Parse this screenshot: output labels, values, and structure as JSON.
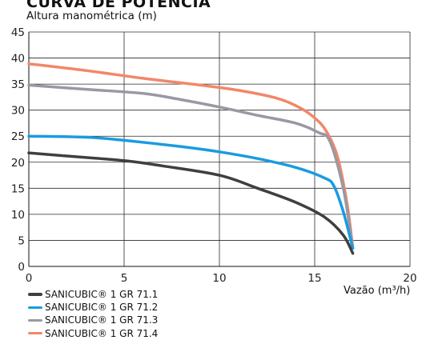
{
  "chart_data": {
    "type": "line",
    "title": "CURVA DE POTÊNCIA",
    "ylabel": "Altura manométrica (m)",
    "xlabel": "Vazão (m³/h)",
    "xlim": [
      0,
      20
    ],
    "ylim": [
      0,
      45
    ],
    "xticks": [
      0,
      5,
      10,
      15,
      20
    ],
    "yticks": [
      0,
      5,
      10,
      15,
      20,
      25,
      30,
      35,
      40,
      45
    ],
    "grid": true,
    "legend_position": "bottom-left",
    "series": [
      {
        "name": "SANICUBIC® 1 GR 71.1",
        "color": "#3f3f3f",
        "x": [
          0,
          2,
          5,
          7,
          10,
          12,
          14,
          15.5,
          16.5,
          17.0
        ],
        "y": [
          21.8,
          21.2,
          20.3,
          19.3,
          17.5,
          15.0,
          12.3,
          9.5,
          6.0,
          2.5
        ]
      },
      {
        "name": "SANICUBIC® 1 GR 71.2",
        "color": "#1a9be0",
        "x": [
          0,
          3,
          5,
          8,
          10,
          12,
          14,
          15.5,
          16.0,
          16.5,
          17.0
        ],
        "y": [
          25.0,
          24.8,
          24.2,
          23.0,
          22.0,
          20.7,
          19.0,
          17.0,
          15.5,
          10.5,
          3.5
        ]
      },
      {
        "name": "SANICUBIC® 1 GR 71.3",
        "color": "#9a98a3",
        "x": [
          0,
          3,
          6,
          8,
          10,
          12,
          14,
          15.2,
          15.8,
          16.5,
          17.0
        ],
        "y": [
          34.8,
          34.0,
          33.2,
          32.0,
          30.6,
          29.0,
          27.5,
          25.7,
          24.0,
          15.0,
          3.5
        ]
      },
      {
        "name": "SANICUBIC® 1 GR 71.4",
        "color": "#f2876a",
        "x": [
          0,
          3,
          6,
          9,
          11,
          13,
          14.2,
          15.0,
          15.6,
          16.2,
          16.7,
          17.0
        ],
        "y": [
          38.9,
          37.6,
          36.1,
          34.8,
          33.8,
          32.3,
          30.5,
          28.5,
          26.0,
          21.0,
          12.0,
          3.5
        ]
      }
    ]
  }
}
